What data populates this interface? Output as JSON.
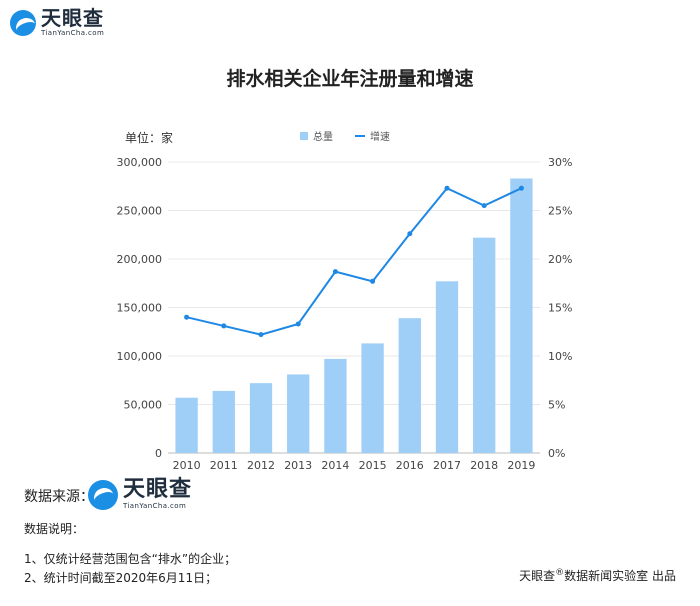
{
  "brand": {
    "name_cn": "天眼查",
    "name_en": "TianYanCha.com"
  },
  "chart_data": {
    "type": "bar",
    "title": "排水相关企业年注册量和增速",
    "unit_label": "单位：家",
    "categories": [
      "2010",
      "2011",
      "2012",
      "2013",
      "2014",
      "2015",
      "2016",
      "2017",
      "2018",
      "2019"
    ],
    "series": [
      {
        "name": "总量",
        "type": "bar",
        "axis": "left",
        "color": "#9fcff7",
        "values": [
          57000,
          64000,
          72000,
          81000,
          97000,
          113000,
          139000,
          177000,
          222000,
          283000
        ]
      },
      {
        "name": "增速",
        "type": "line",
        "axis": "right",
        "color": "#1e88e5",
        "values": [
          14.0,
          13.1,
          12.2,
          13.3,
          18.7,
          17.7,
          22.6,
          27.3,
          25.5,
          27.3
        ]
      }
    ],
    "y_left": {
      "range": [
        0,
        300000
      ],
      "ticks": [
        0,
        50000,
        100000,
        150000,
        200000,
        250000,
        300000
      ],
      "tick_labels": [
        "0",
        "50,000",
        "100,000",
        "150,000",
        "200,000",
        "250,000",
        "300,000"
      ]
    },
    "y_right": {
      "range": [
        0,
        30
      ],
      "ticks": [
        0,
        5,
        10,
        15,
        20,
        25,
        30
      ],
      "tick_labels": [
        "0%",
        "5%",
        "10%",
        "15%",
        "20%",
        "25%",
        "30%"
      ]
    },
    "grid": true,
    "legend_position": "top-center"
  },
  "footer": {
    "source_label": "数据来源：",
    "notes_title": "数据说明：",
    "note_1": "1、仅统计经营范围包含“排水”的企业；",
    "note_2": "2、统计时间截至2020年6月11日；",
    "credit_brand": "天眼查",
    "credit_reg": "®",
    "credit_rest": "数据新闻实验室 出品"
  }
}
